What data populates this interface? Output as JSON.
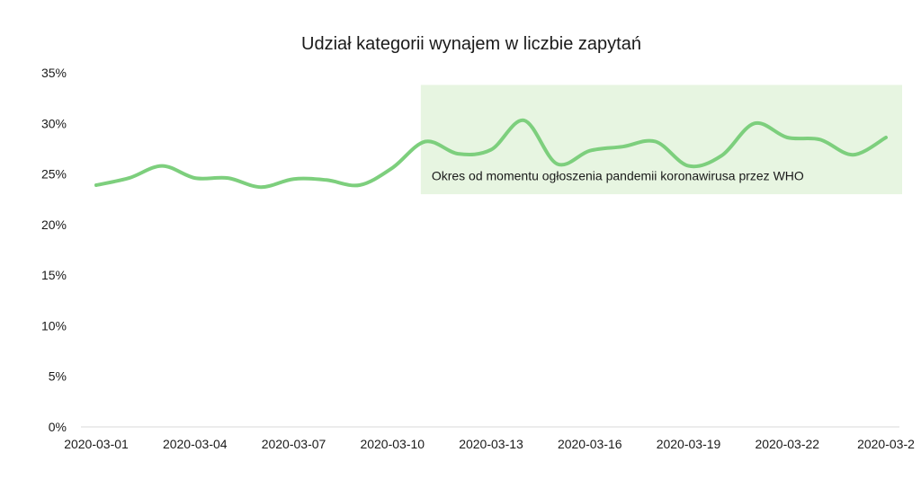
{
  "chart_data": {
    "type": "line",
    "title": "Udział kategorii wynajem w liczbie zapytań",
    "xlabel": "",
    "ylabel": "",
    "x": [
      "2020-03-01",
      "2020-03-02",
      "2020-03-03",
      "2020-03-04",
      "2020-03-05",
      "2020-03-06",
      "2020-03-07",
      "2020-03-08",
      "2020-03-09",
      "2020-03-10",
      "2020-03-11",
      "2020-03-12",
      "2020-03-13",
      "2020-03-14",
      "2020-03-15",
      "2020-03-16",
      "2020-03-17",
      "2020-03-18",
      "2020-03-19",
      "2020-03-20",
      "2020-03-21",
      "2020-03-22",
      "2020-03-23",
      "2020-03-24",
      "2020-03-25"
    ],
    "x_tick_labels": [
      "2020-03-01",
      "2020-03-04",
      "2020-03-07",
      "2020-03-10",
      "2020-03-13",
      "2020-03-16",
      "2020-03-19",
      "2020-03-22",
      "2020-03-2"
    ],
    "y_tick_labels": [
      "0%",
      "5%",
      "10%",
      "15%",
      "20%",
      "25%",
      "30%",
      "35%"
    ],
    "ylim": [
      0,
      35
    ],
    "yticks": [
      0,
      5,
      10,
      15,
      20,
      25,
      30,
      35
    ],
    "grid": false,
    "series": [
      {
        "values": [
          23.9,
          24.6,
          25.8,
          24.6,
          24.6,
          23.7,
          24.5,
          24.4,
          23.9,
          25.6,
          28.2,
          27.0,
          27.4,
          30.3,
          26.0,
          27.3,
          27.7,
          28.2,
          25.8,
          26.8,
          30.0,
          28.6,
          28.4,
          26.9,
          28.6
        ],
        "color": "#7dcf7d"
      }
    ],
    "annotation": {
      "text": "Okres od momentu  ogłoszenia pandemii koronawirusa  przez  WHO",
      "x_start": "2020-03-11",
      "x_end": "2020-03-25",
      "y_start": 23,
      "y_end": 33.8,
      "color": "#e7f5e1"
    }
  }
}
